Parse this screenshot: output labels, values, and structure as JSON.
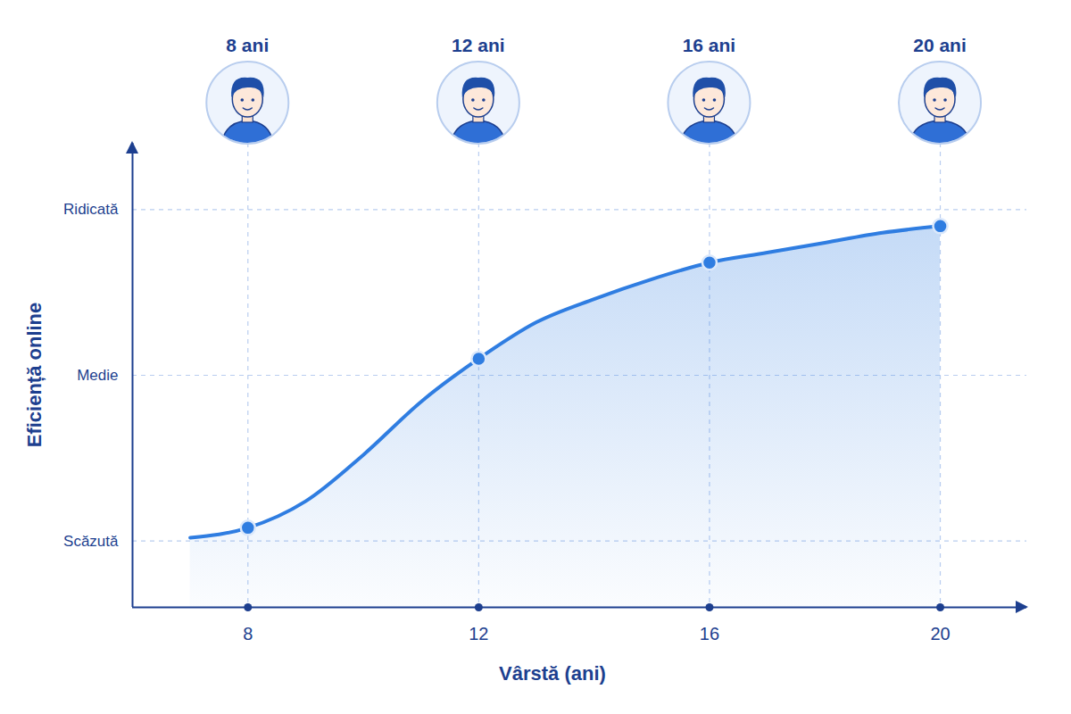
{
  "chart_data": {
    "type": "line",
    "x_label": "Vârstă (ani)",
    "y_label": "Eficiență online",
    "xlim": [
      6,
      21.5
    ],
    "xticks": [
      8,
      12,
      16,
      20
    ],
    "ylim": [
      -20,
      120
    ],
    "yticks": [
      {
        "value": 0,
        "label": "Scăzută"
      },
      {
        "value": 50,
        "label": "Medie"
      },
      {
        "value": 100,
        "label": "Ridicată"
      }
    ],
    "grid": true,
    "series": [
      {
        "type": "area",
        "color": "#2f7de1",
        "x": [
          7,
          8,
          9,
          10,
          11,
          12,
          13,
          14,
          15,
          16,
          17,
          18,
          19,
          20
        ],
        "values": [
          1,
          4,
          12,
          26,
          42,
          55,
          66,
          73,
          79,
          84,
          87,
          90,
          93,
          95
        ]
      },
      {
        "type": "scatter",
        "color": "#2f7de1",
        "marker": "circle",
        "x": [
          8,
          12,
          16,
          20
        ],
        "values": [
          4,
          55,
          84,
          95
        ]
      }
    ],
    "annotations": [
      {
        "x": 8,
        "text": "8 ani"
      },
      {
        "x": 12,
        "text": "12 ani"
      },
      {
        "x": 16,
        "text": "16 ani"
      },
      {
        "x": 20,
        "text": "20 ani"
      }
    ]
  }
}
